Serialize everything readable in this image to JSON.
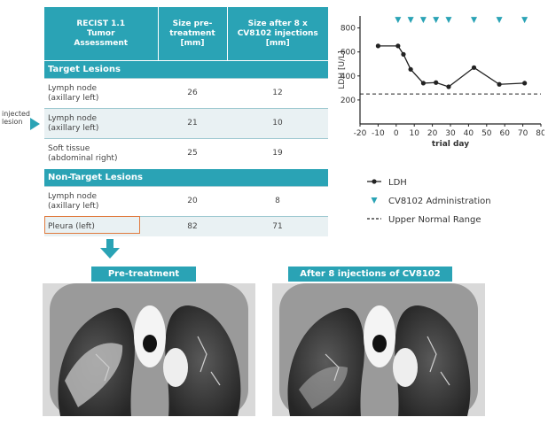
{
  "table": {
    "headers": [
      "RECIST 1.1\nTumor\nAssessment",
      "Size pre-\ntreatment\n[mm]",
      "Size after 8 x\nCV8102 injections\n[mm]"
    ],
    "sections": [
      {
        "title": "Target Lesions",
        "rows": [
          {
            "label": "Lymph node\n(axillary left)",
            "pre": "26",
            "post": "12"
          },
          {
            "label": "Lymph node\n(axillary left)",
            "pre": "21",
            "post": "10"
          },
          {
            "label": "Soft tissue\n(abdominal right)",
            "pre": "25",
            "post": "19"
          }
        ]
      },
      {
        "title": "Non-Target Lesions",
        "rows": [
          {
            "label": "Lymph node\n(axillary left)",
            "pre": "20",
            "post": "8"
          },
          {
            "label": "Pleura (left)",
            "pre": "82",
            "post": "71"
          }
        ]
      }
    ]
  },
  "annotation": {
    "injected_label": "injected\nlesion"
  },
  "ct": {
    "pre_label": "Pre-treatment",
    "post_label": "After 8 injections of CV8102"
  },
  "colors": {
    "accent": "#2aa3b5",
    "highlight": "#e07a3e",
    "line": "#222222"
  },
  "chart_data": {
    "type": "line",
    "ylabel": "LDH [U/L]",
    "xlabel": "trial day",
    "xlim": [
      -20,
      80
    ],
    "ylim": [
      0,
      900
    ],
    "xticks": [
      -20,
      -10,
      0,
      10,
      20,
      30,
      40,
      50,
      60,
      70,
      80
    ],
    "yticks": [
      200,
      400,
      600,
      800
    ],
    "series": [
      {
        "name": "LDH",
        "x": [
          -10,
          1,
          4,
          8,
          15,
          22,
          29,
          43,
          57,
          71
        ],
        "y": [
          650,
          650,
          580,
          455,
          340,
          345,
          310,
          470,
          330,
          340
        ]
      }
    ],
    "administration_days": [
      1,
      8,
      15,
      22,
      29,
      43,
      57,
      71
    ],
    "upper_normal_range": 250,
    "legend": [
      "LDH",
      "CV8102 Administration",
      "Upper Normal Range"
    ]
  }
}
